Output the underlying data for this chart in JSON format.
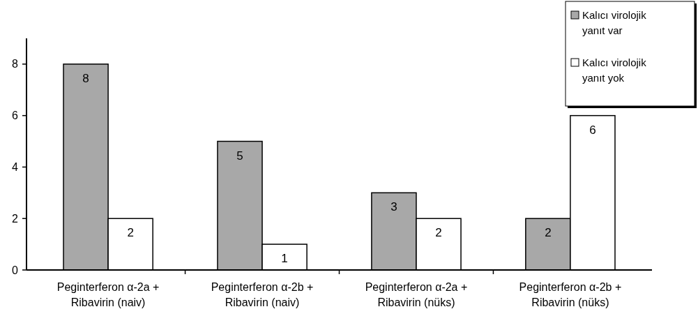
{
  "chart_data": {
    "type": "bar",
    "categories": [
      "Peginterferon α-2a +\nRibavirin (naiv)",
      "Peginterferon α-2b +\nRibavirin (naiv)",
      "Peginterferon α-2a +\nRibavirin (nüks)",
      "Peginterferon α-2b +\nRibavirin (nüks)"
    ],
    "series": [
      {
        "name": "Kalıcı virolojik yanıt var",
        "color": "#a8a8a8",
        "values": [
          8,
          5,
          3,
          2
        ]
      },
      {
        "name": "Kalıcı virolojik yanıt yok",
        "color": "#ffffff",
        "values": [
          2,
          1,
          2,
          6
        ]
      }
    ],
    "ylim": [
      0,
      9
    ],
    "yticks": [
      0,
      2,
      4,
      6,
      8
    ],
    "grid": false,
    "legend": "top right",
    "data_labels": true
  }
}
